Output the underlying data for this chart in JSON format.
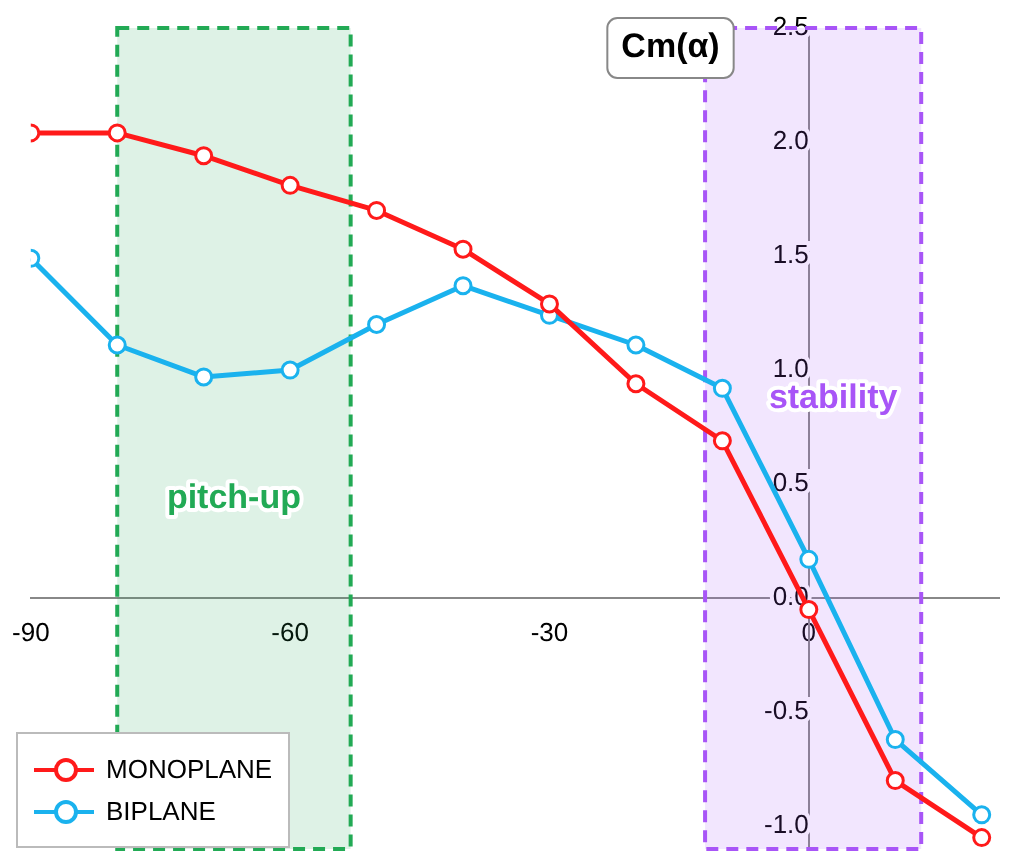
{
  "chart_data": {
    "type": "line",
    "title": "Cm(α)",
    "x": [
      -90,
      -80,
      -70,
      -60,
      -50,
      -40,
      -30,
      -20,
      -10,
      0,
      10,
      20
    ],
    "series": [
      {
        "name": "MONOPLANE",
        "color": "#ff1a1a",
        "values": [
          2.04,
          2.04,
          1.94,
          1.81,
          1.7,
          1.53,
          1.29,
          0.94,
          0.69,
          -0.05,
          -0.8,
          -1.05
        ]
      },
      {
        "name": "BIPLANE",
        "color": "#1ab2ee",
        "values": [
          1.49,
          1.11,
          0.97,
          1.0,
          1.2,
          1.37,
          1.24,
          1.11,
          0.92,
          0.17,
          -0.62,
          -0.95
        ]
      }
    ],
    "xlim": [
      -90,
      22
    ],
    "xticks": [
      -90,
      -60,
      -30,
      0
    ],
    "ylim": [
      -1.1,
      2.5
    ],
    "yticks": [
      {
        "value": -1,
        "label": "-1.0"
      },
      -0.5,
      {
        "value": 0,
        "label": "0.0"
      },
      0.5,
      {
        "value": 1,
        "label": "1.0"
      },
      1.5,
      {
        "value": 2,
        "label": "2.0"
      },
      2.5
    ],
    "bands": [
      {
        "axis": "x",
        "from": -80,
        "to": -53,
        "label": "pitch-up",
        "color": "#22aa55"
      },
      {
        "axis": "x",
        "from": -12,
        "to": 13,
        "label": "stability",
        "color": "#a855f7"
      }
    ],
    "grid": false,
    "legend": "bottom left",
    "marker": "circle",
    "line_style": "solid"
  }
}
